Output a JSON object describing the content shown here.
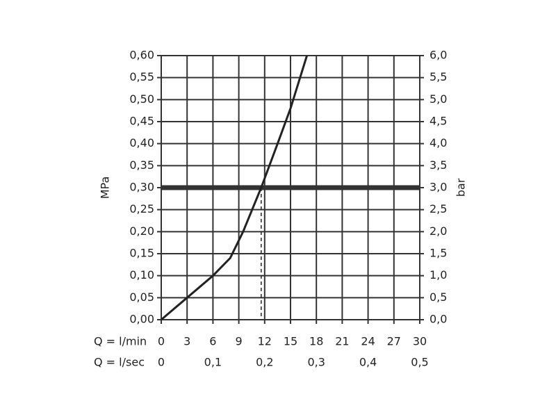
{
  "chart_data": {
    "type": "line",
    "x": [
      0,
      3,
      6,
      8,
      9.5,
      11.6,
      13.5,
      15,
      16.9
    ],
    "values": [
      0,
      0.05,
      0.1,
      0.14,
      0.2,
      0.3,
      0.4,
      0.48,
      0.6
    ],
    "color": "#222222",
    "xlabel": "Q = l/min",
    "x2label": "Q = l/sec",
    "ylabel": "MPa",
    "y2label": "bar",
    "xlim": [
      0,
      30
    ],
    "xticks": [
      0,
      3,
      6,
      9,
      12,
      15,
      18,
      21,
      24,
      27,
      30
    ],
    "x2lim": [
      0,
      0.5
    ],
    "x2ticks": [
      0,
      {
        "value": 0.1,
        "label": "0,1"
      },
      {
        "value": 0.2,
        "label": "0,2"
      },
      {
        "value": 0.3,
        "label": "0,3"
      },
      {
        "value": 0.4,
        "label": "0,4"
      },
      {
        "value": 0.5,
        "label": "0,5"
      }
    ],
    "ylim": [
      0,
      0.6
    ],
    "yticks": [
      {
        "value": 0,
        "label": "0,00"
      },
      {
        "value": 0.05,
        "label": "0,05"
      },
      {
        "value": 0.1,
        "label": "0,10"
      },
      {
        "value": 0.15,
        "label": "0,15"
      },
      {
        "value": 0.2,
        "label": "0,20"
      },
      {
        "value": 0.25,
        "label": "0,25"
      },
      {
        "value": 0.3,
        "label": "0,30"
      },
      {
        "value": 0.35,
        "label": "0,35"
      },
      {
        "value": 0.4,
        "label": "0,40"
      },
      {
        "value": 0.45,
        "label": "0,45"
      },
      {
        "value": 0.5,
        "label": "0,50"
      },
      {
        "value": 0.55,
        "label": "0,55"
      },
      {
        "value": 0.6,
        "label": "0,60"
      }
    ],
    "y2lim": [
      0,
      6
    ],
    "y2ticks": [
      {
        "value": 0,
        "label": "0,0"
      },
      {
        "value": 0.5,
        "label": "0,5"
      },
      {
        "value": 1,
        "label": "1,0"
      },
      {
        "value": 1.5,
        "label": "1,5"
      },
      {
        "value": 2,
        "label": "2,0"
      },
      {
        "value": 2.5,
        "label": "2,5"
      },
      {
        "value": 3,
        "label": "3,0"
      },
      {
        "value": 3.5,
        "label": "3,5"
      },
      {
        "value": 4,
        "label": "4,0"
      },
      {
        "value": 4.5,
        "label": "4,5"
      },
      {
        "value": 5,
        "label": "5,0"
      },
      {
        "value": 5.5,
        "label": "5,5"
      },
      {
        "value": 6,
        "label": "6,0"
      }
    ],
    "reference_y": 0.3,
    "reference_x": 11.6,
    "grid": true
  }
}
